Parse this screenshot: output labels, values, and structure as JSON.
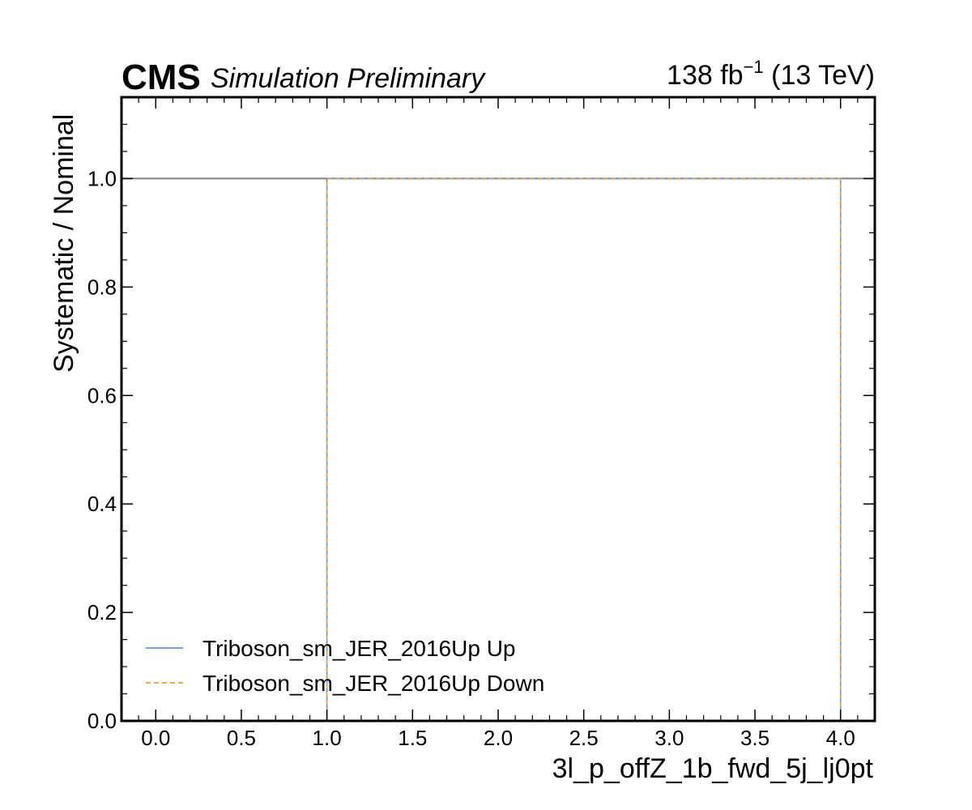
{
  "header": {
    "experiment": "CMS",
    "status": "Simulation Preliminary",
    "lumi": "138 fb",
    "lumi_exp": "−1",
    "energy": " (13 TeV)"
  },
  "chart_data": {
    "type": "line",
    "xlabel": "3l_p_offZ_1b_fwd_5j_lj0pt",
    "ylabel": "Systematic / Nominal",
    "xlim": [
      -0.2,
      4.2
    ],
    "ylim": [
      0.0,
      1.15
    ],
    "x_ticks": [
      0.0,
      0.5,
      1.0,
      1.5,
      2.0,
      2.5,
      3.0,
      3.5,
      4.0
    ],
    "x_tick_labels": [
      "0.0",
      "0.5",
      "1.0",
      "1.5",
      "2.0",
      "2.5",
      "3.0",
      "3.5",
      "4.0"
    ],
    "y_ticks": [
      0.0,
      0.2,
      0.4,
      0.6,
      0.8,
      1.0
    ],
    "y_tick_labels": [
      "0.0",
      "0.2",
      "0.4",
      "0.6",
      "0.8",
      "1.0"
    ],
    "reference_line": {
      "y": 1.0,
      "color": "#808080"
    },
    "grid": false,
    "legend_position": "bottom-left",
    "series": [
      {
        "name": "Triboson_sm_JER_2016Up Up",
        "color": "#5790fc",
        "style": "solid",
        "x": [
          1.0,
          1.0,
          4.0,
          4.0
        ],
        "y": [
          0.0,
          1.0,
          1.0,
          0.0
        ]
      },
      {
        "name": "Triboson_sm_JER_2016Up Down",
        "color": "#f89c20",
        "style": "dashed",
        "x": [
          1.0,
          1.0,
          4.0,
          4.0
        ],
        "y": [
          0.0,
          1.0,
          1.0,
          0.0
        ]
      }
    ]
  }
}
